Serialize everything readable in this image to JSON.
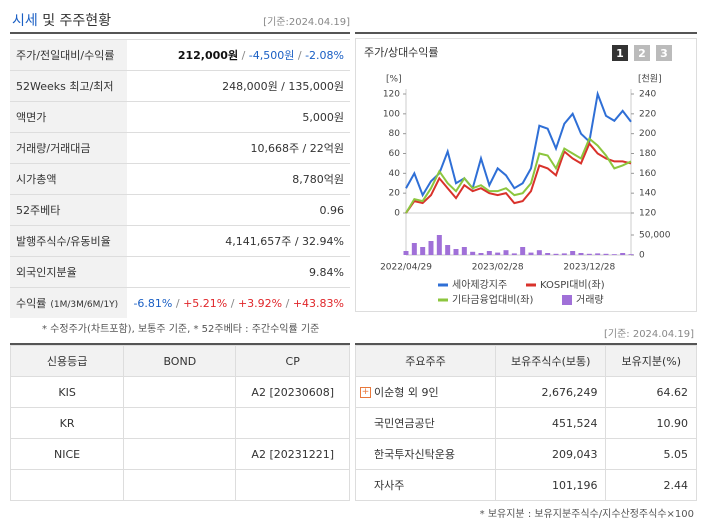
{
  "header": {
    "title_main": "시세",
    "title_rest": "및 주주현황",
    "date": "[기준:2024.04.19]"
  },
  "quote_table": {
    "rows": [
      {
        "label": "주가/전일대비/수익률",
        "parts": [
          {
            "text": "212,000원",
            "color": "#111111",
            "bold": true
          },
          {
            "text": " / ",
            "color": "#888888"
          },
          {
            "text": "-4,500원",
            "color": "#1a5fc4"
          },
          {
            "text": " / ",
            "color": "#888888"
          },
          {
            "text": "-2.08%",
            "color": "#1a5fc4"
          }
        ]
      },
      {
        "label": "52Weeks 최고/최저",
        "parts": [
          {
            "text": "248,000원 / 135,000원",
            "color": "#333333"
          }
        ]
      },
      {
        "label": "액면가",
        "parts": [
          {
            "text": "5,000원",
            "color": "#333333"
          }
        ]
      },
      {
        "label": "거래량/거래대금",
        "parts": [
          {
            "text": "10,668주 / 22억원",
            "color": "#333333"
          }
        ]
      },
      {
        "label": "시가총액",
        "parts": [
          {
            "text": "8,780억원",
            "color": "#333333"
          }
        ]
      },
      {
        "label": "52주베타",
        "parts": [
          {
            "text": "0.96",
            "color": "#333333"
          }
        ]
      },
      {
        "label": "발행주식수/유동비율",
        "parts": [
          {
            "text": "4,141,657주 / 32.94%",
            "color": "#333333"
          }
        ]
      },
      {
        "label": "외국인지분율",
        "parts": [
          {
            "text": "9.84%",
            "color": "#333333"
          }
        ]
      },
      {
        "label": "수익률",
        "label_note": "(1M/3M/6M/1Y)",
        "parts": [
          {
            "text": "-6.81%",
            "color": "#1a5fc4"
          },
          {
            "text": " / ",
            "color": "#888888"
          },
          {
            "text": "+5.21%",
            "color": "#e0262a"
          },
          {
            "text": " / ",
            "color": "#888888"
          },
          {
            "text": "+3.92%",
            "color": "#e0262a"
          },
          {
            "text": " / ",
            "color": "#888888"
          },
          {
            "text": "+43.83%",
            "color": "#e0262a"
          }
        ]
      }
    ],
    "footnote": "* 수정주가(차트포함), 보통주 기준, * 52주베타 : 주간수익률 기준"
  },
  "chart_data": {
    "type": "line",
    "title": "주가/상대수익률",
    "buttons": [
      "1",
      "2",
      "3"
    ],
    "y_label": "[%]",
    "y2_label": "[천원]",
    "categories": [
      "2022/04/29",
      null,
      null,
      null,
      null,
      null,
      null,
      null,
      null,
      null,
      null,
      "2023/02/28",
      null,
      null,
      null,
      null,
      null,
      null,
      null,
      null,
      null,
      null,
      "2023/12/28",
      null,
      null,
      null,
      null,
      null
    ],
    "ylim": [
      0,
      120
    ],
    "yticks": [
      0,
      20,
      40,
      60,
      80,
      100,
      120
    ],
    "y2lim": [
      120,
      240
    ],
    "y2ticks": [
      120,
      140,
      160,
      180,
      200,
      220,
      240
    ],
    "series": [
      {
        "name": "세아제강지주",
        "color": "#2f6fd6",
        "axis": "y2",
        "values": [
          145,
          160,
          138,
          152,
          160,
          182,
          150,
          155,
          145,
          175,
          148,
          165,
          158,
          145,
          150,
          165,
          208,
          205,
          185,
          210,
          220,
          200,
          192,
          240,
          218,
          213,
          223,
          212
        ]
      },
      {
        "name": "KOSPI대비(좌)",
        "color": "#d9322b",
        "values": [
          0,
          12,
          10,
          18,
          35,
          25,
          15,
          28,
          22,
          25,
          20,
          18,
          20,
          10,
          12,
          22,
          48,
          45,
          38,
          62,
          55,
          50,
          70,
          60,
          55,
          52,
          52,
          50
        ]
      },
      {
        "name": "기타금융업대비(좌)",
        "color": "#8cc63e",
        "values": [
          0,
          14,
          12,
          25,
          42,
          30,
          22,
          35,
          25,
          28,
          22,
          22,
          25,
          18,
          20,
          30,
          60,
          58,
          45,
          65,
          60,
          55,
          75,
          68,
          58,
          45,
          48,
          52
        ]
      }
    ],
    "volume": {
      "name": "거래량",
      "color": "#a070d8",
      "ylim": [
        0,
        60000
      ],
      "yticks": [
        0,
        {
          "value": 50000,
          "label": "50,000"
        }
      ],
      "values": [
        10000,
        30000,
        20000,
        35000,
        50000,
        25000,
        15000,
        20000,
        8000,
        5000,
        10000,
        6000,
        12000,
        4000,
        20000,
        6000,
        12000,
        5000,
        3000,
        4000,
        10000,
        5000,
        3000,
        4000,
        3000,
        2000,
        5000,
        2000
      ]
    }
  },
  "credit_table": {
    "headers": [
      "신용등급",
      "BOND",
      "CP"
    ],
    "rows": [
      [
        "KIS",
        null,
        "A2 [20230608]"
      ],
      [
        "KR",
        null,
        null
      ],
      [
        "NICE",
        null,
        "A2 [20231221]"
      ]
    ]
  },
  "holders": {
    "date": "[기준: 2024.04.19]",
    "headers": [
      "주요주주",
      "보유주식수(보통)",
      "보유지분(%)"
    ],
    "rows": [
      [
        "이순형 외 9인",
        "2,676,249",
        "64.62"
      ],
      [
        "국민연금공단",
        "451,524",
        "10.90"
      ],
      [
        "한국투자신탁운용",
        "209,043",
        "5.05"
      ],
      [
        "자사주",
        "101,196",
        "2.44"
      ]
    ],
    "footnote": "* 보유지분 : 보유지분주식수/지수산정주식수×100"
  }
}
